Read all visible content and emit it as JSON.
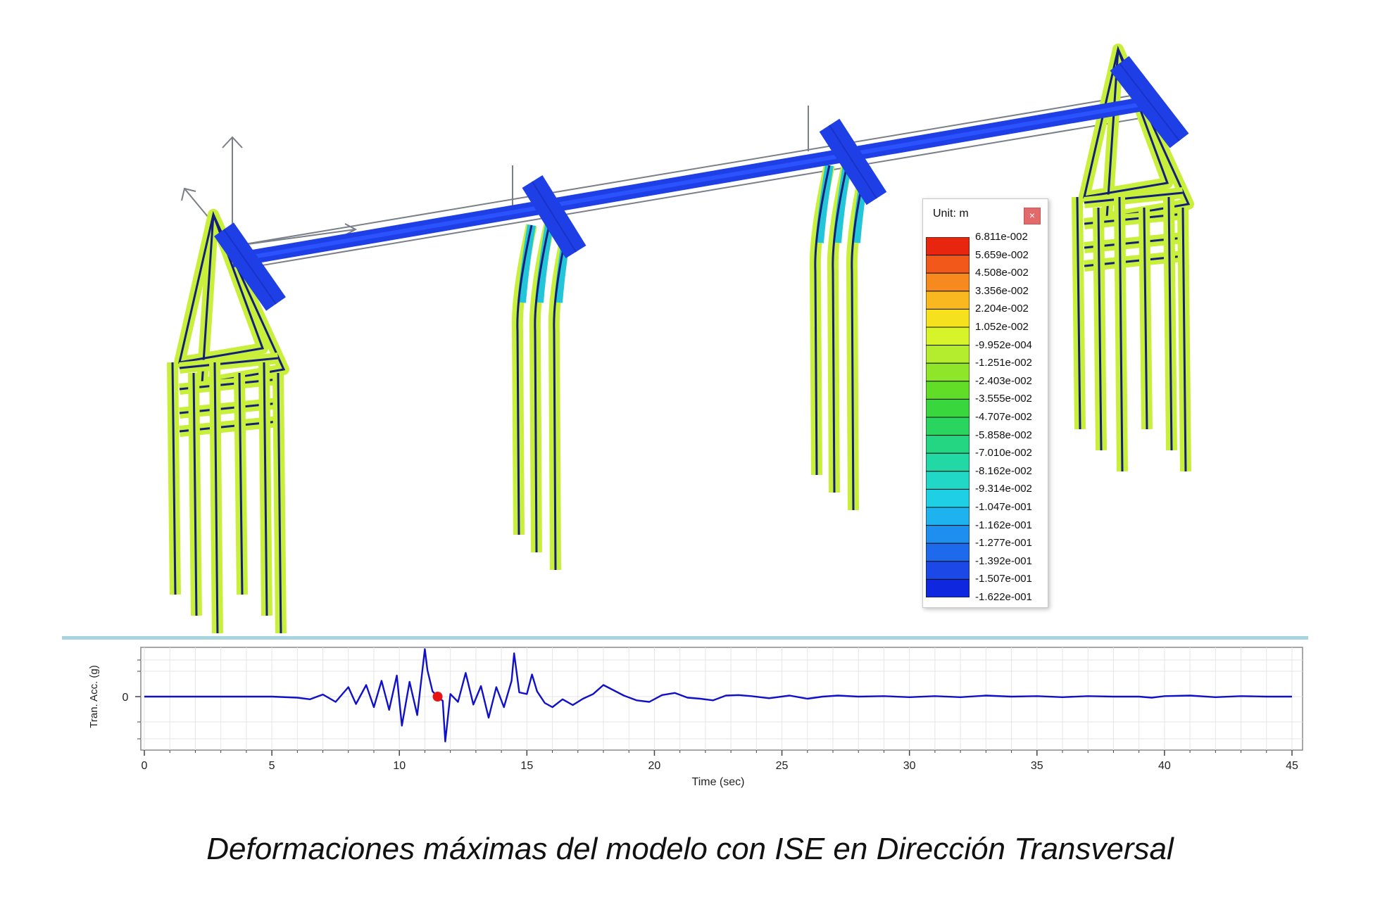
{
  "legend": {
    "title": "Unit: m",
    "close_glyph": "×",
    "levels": [
      "6.811e-002",
      "5.659e-002",
      "4.508e-002",
      "3.356e-002",
      "2.204e-002",
      "1.052e-002",
      "-9.952e-004",
      "-1.251e-002",
      "-2.403e-002",
      "-3.555e-002",
      "-4.707e-002",
      "-5.858e-002",
      "-7.010e-002",
      "-8.162e-002",
      "-9.314e-002",
      "-1.047e-001",
      "-1.162e-001",
      "-1.277e-001",
      "-1.392e-001",
      "-1.507e-001",
      "-1.622e-001"
    ],
    "colors": [
      "#e8250f",
      "#f2581a",
      "#f78a1f",
      "#f9b820",
      "#f6e11e",
      "#d7f32a",
      "#b4ec2e",
      "#8fe52a",
      "#62dd27",
      "#3ad63d",
      "#2ad55f",
      "#24d681",
      "#22d8a4",
      "#21d8c7",
      "#1fd0e5",
      "#1eb3ee",
      "#1e8fee",
      "#1e6aec",
      "#1c48e8",
      "#1027e0"
    ]
  },
  "colors": {
    "deck_blue": "#1f3fe6",
    "pile_green": "#c8f03a",
    "frame_navy": "#12207a",
    "axis_gray": "#7a7f88",
    "signal_blue": "#1010c8",
    "marker_red": "#e81414",
    "separator": "#a8d4e0"
  },
  "plot": {
    "ylabel": "Tran. Acc. (g)",
    "xlabel": "Time (sec)",
    "y_tick_label": "0",
    "x_ticks": [
      0,
      5,
      10,
      15,
      20,
      25,
      30,
      35,
      40,
      45
    ],
    "x_range": [
      0,
      45
    ],
    "marker_time": 11.5
  },
  "chart_data": {
    "type": "line",
    "xlabel": "Time (sec)",
    "ylabel": "Tran. Acc. (g)",
    "xlim": [
      0,
      45
    ],
    "grid": true,
    "series": [
      {
        "x": [
          0,
          5,
          6,
          6.5,
          7,
          7.5,
          8,
          8.3,
          8.7,
          9,
          9.3,
          9.6,
          9.9,
          10.1,
          10.4,
          10.7,
          11,
          11.1,
          11.3,
          11.5,
          11.7,
          11.8,
          12,
          12.3,
          12.6,
          12.9,
          13.2,
          13.5,
          13.8,
          14.1,
          14.4,
          14.5,
          14.7,
          15,
          15.2,
          15.4,
          15.7,
          16,
          16.4,
          16.8,
          17.2,
          17.6,
          18,
          18.4,
          18.8,
          19.3,
          19.8,
          20.3,
          20.8,
          21.3,
          21.8,
          22.3,
          22.8,
          23.3,
          23.8,
          24.5,
          25.3,
          26,
          26.6,
          27.2,
          28,
          29,
          30,
          31,
          32,
          33,
          34,
          35,
          36,
          37,
          38,
          39,
          39.5,
          40,
          41,
          42,
          43,
          44,
          45
        ],
        "y": [
          0,
          0,
          -0.02,
          -0.05,
          0.04,
          -0.1,
          0.18,
          -0.14,
          0.22,
          -0.2,
          0.3,
          -0.25,
          0.4,
          -0.55,
          0.28,
          -0.35,
          0.9,
          0.5,
          0.1,
          0,
          -0.08,
          -0.85,
          0.05,
          -0.1,
          0.45,
          -0.15,
          0.2,
          -0.4,
          0.18,
          -0.2,
          0.3,
          0.82,
          0.08,
          0.05,
          0.42,
          0.1,
          -0.12,
          -0.2,
          -0.05,
          -0.16,
          -0.04,
          0.05,
          0.22,
          0.12,
          0.02,
          -0.07,
          -0.1,
          0.03,
          0.07,
          -0.02,
          -0.04,
          -0.07,
          0.02,
          0.03,
          0.01,
          -0.03,
          0.02,
          -0.04,
          0,
          0.02,
          0,
          0.01,
          -0.01,
          0.01,
          -0.01,
          0.02,
          0,
          0.01,
          -0.01,
          0.01,
          0,
          0,
          -0.02,
          0.01,
          0.02,
          -0.01,
          0.01,
          0,
          0
        ]
      }
    ]
  },
  "caption": "Deformaciones máximas del modelo con ISE en Dirección Transversal"
}
